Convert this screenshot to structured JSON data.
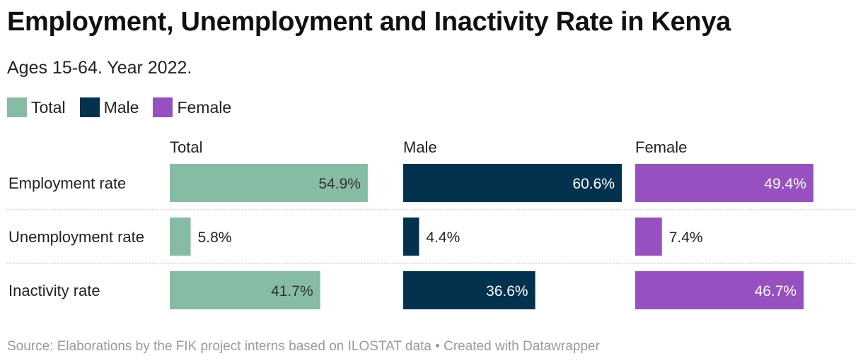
{
  "title": "Employment, Unemployment and Inactivity Rate in Kenya",
  "subtitle": "Ages 15-64. Year 2022.",
  "legend": [
    {
      "label": "Total",
      "color": "#86bca4"
    },
    {
      "label": "Male",
      "color": "#03324f"
    },
    {
      "label": "Female",
      "color": "#9650c0"
    }
  ],
  "source": "Source: Elaborations by the FIK project interns based on ILOSTAT data • Created with Datawrapper",
  "chart_data": {
    "type": "bar",
    "orientation": "horizontal",
    "layout": "split-bars",
    "categories": [
      "Employment rate",
      "Unemployment rate",
      "Inactivity rate"
    ],
    "series": [
      {
        "name": "Total",
        "color": "#86bca4",
        "values": [
          54.9,
          5.8,
          41.7
        ],
        "labels": [
          "54.9%",
          "5.8%",
          "41.7%"
        ]
      },
      {
        "name": "Male",
        "color": "#03324f",
        "values": [
          60.6,
          4.4,
          36.6
        ],
        "labels": [
          "60.6%",
          "4.4%",
          "36.6%"
        ]
      },
      {
        "name": "Female",
        "color": "#9650c0",
        "values": [
          49.4,
          7.4,
          46.7
        ],
        "labels": [
          "49.4%",
          "7.4%",
          "46.7%"
        ]
      }
    ],
    "value_suffix": "%",
    "xlim": [
      0,
      60.6
    ]
  }
}
